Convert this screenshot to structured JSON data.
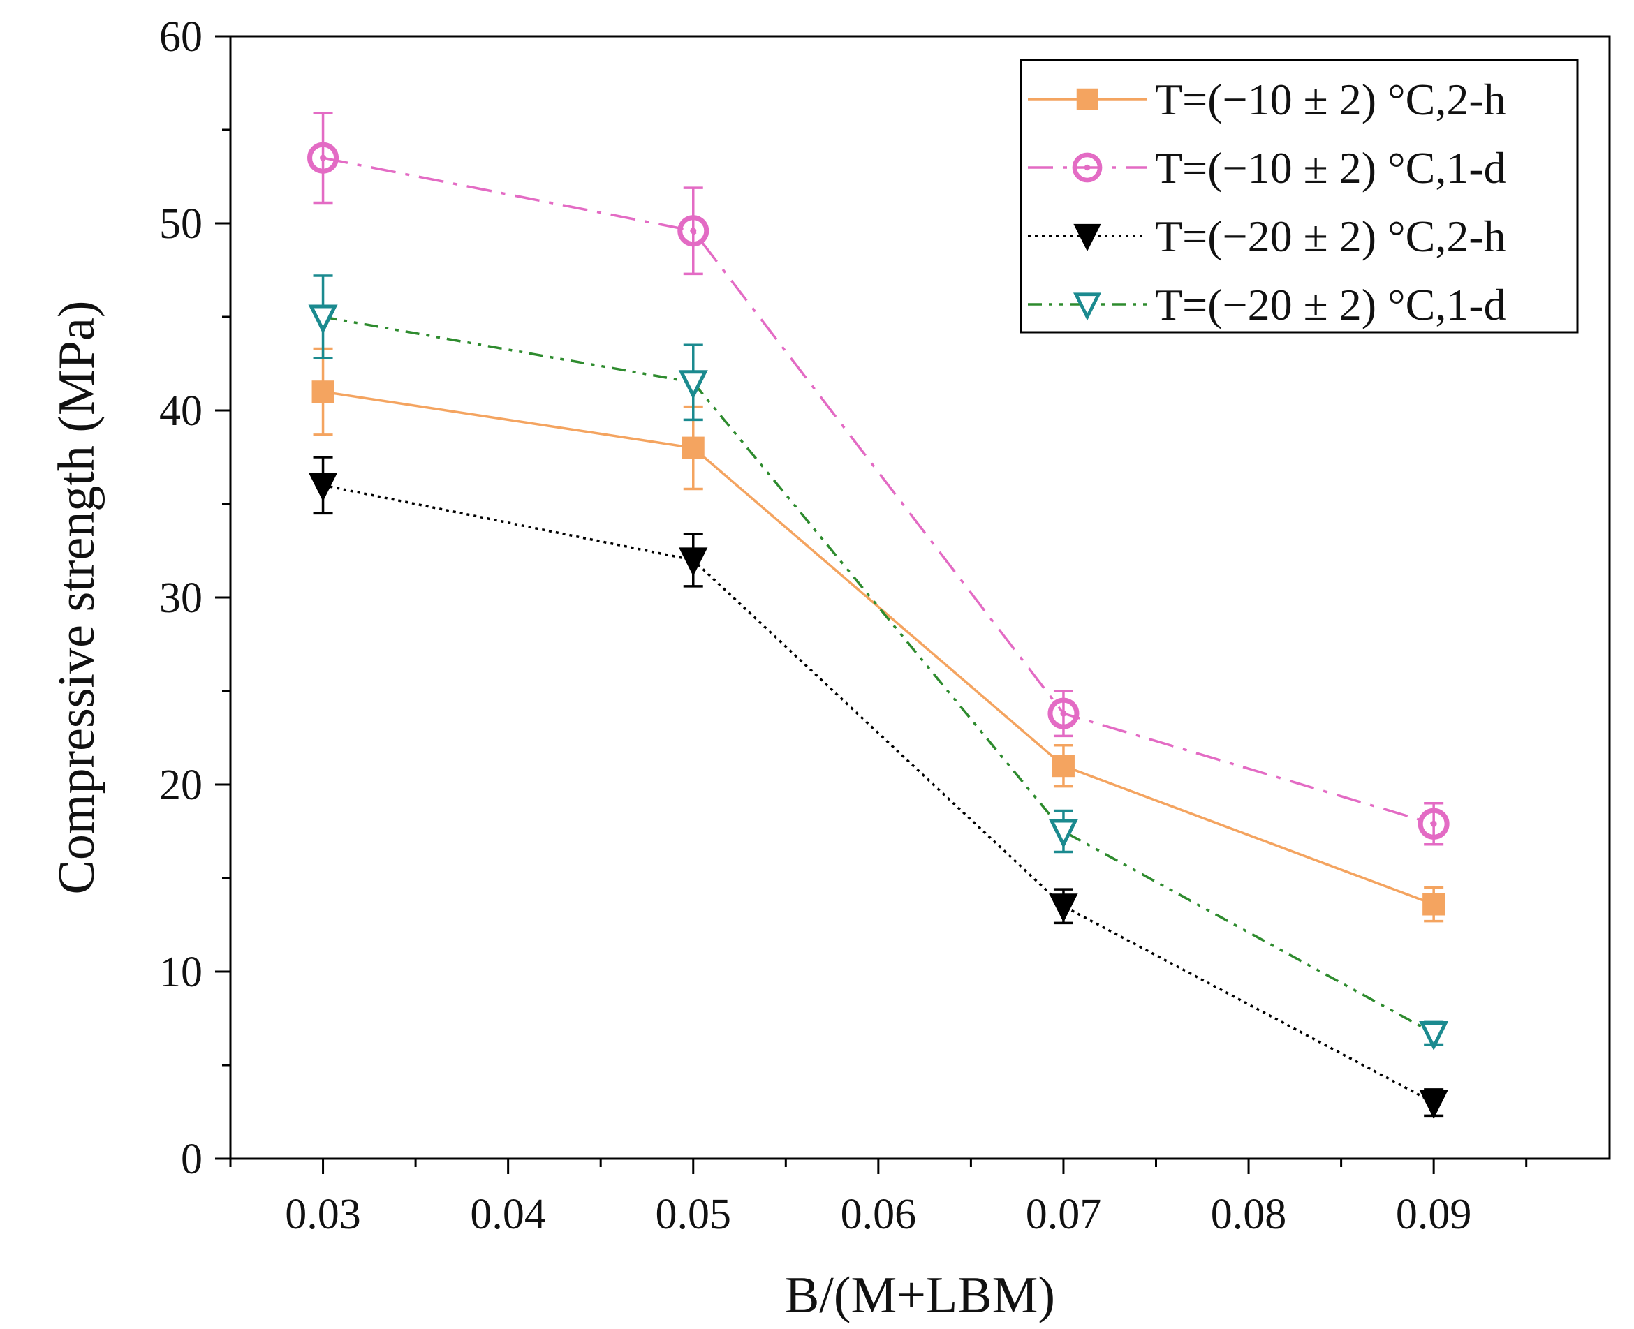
{
  "chart_data": {
    "type": "line",
    "title": "",
    "xlabel": "B/(M+LBM)",
    "ylabel": "Compressive strength (MPa)",
    "xlim": [
      0.025,
      0.0995
    ],
    "ylim": [
      0,
      60
    ],
    "xticks": [
      0.03,
      0.04,
      0.05,
      0.06,
      0.07,
      0.08,
      0.09
    ],
    "xtick_labels": [
      "0.03",
      "0.04",
      "0.05",
      "0.06",
      "0.07",
      "0.08",
      "0.09"
    ],
    "yticks": [
      0,
      10,
      20,
      30,
      40,
      50,
      60
    ],
    "ytick_labels": [
      "0",
      "10",
      "20",
      "30",
      "40",
      "50",
      "60"
    ],
    "grid": false,
    "legend_position": "top-right",
    "x": [
      0.03,
      0.05,
      0.07,
      0.09
    ],
    "series": [
      {
        "name": "T=(−10 ± 2) °C,2-h",
        "values": [
          41.0,
          38.0,
          21.0,
          13.6
        ],
        "errors": [
          2.3,
          2.2,
          1.1,
          0.9
        ],
        "color": "#F4A460",
        "marker": "square-filled",
        "line_style": "solid"
      },
      {
        "name": "T=(−10 ± 2) °C,1-d",
        "values": [
          53.5,
          49.6,
          23.8,
          17.9
        ],
        "errors": [
          2.4,
          2.3,
          1.2,
          1.1
        ],
        "color": "#E36BC4",
        "marker": "circle-dot",
        "line_style": "dashdot"
      },
      {
        "name": "T=(−20 ± 2) °C,2-h",
        "values": [
          36.0,
          32.0,
          13.5,
          3.0
        ],
        "errors": [
          1.5,
          1.4,
          0.9,
          0.7
        ],
        "color": "#000000",
        "marker": "triangle-down-filled",
        "line_style": "dotted"
      },
      {
        "name": "T=(−20 ± 2) °C,1-d",
        "values": [
          45.0,
          41.5,
          17.5,
          6.7
        ],
        "errors": [
          2.2,
          2.0,
          1.1,
          0.6
        ],
        "color": "#1B8A8F",
        "marker": "triangle-down-open",
        "line_style": "dashdotdot",
        "line_color": "#2E8B2E"
      }
    ]
  }
}
